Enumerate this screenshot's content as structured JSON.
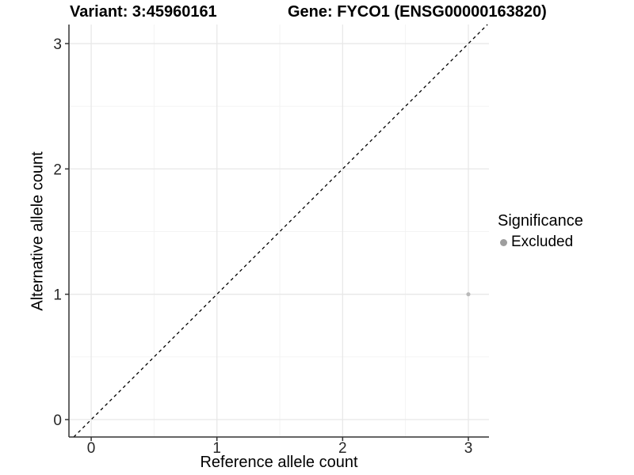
{
  "chart_data": {
    "type": "scatter",
    "title_left": "Variant: 3:45960161",
    "title_right": "Gene: FYCO1 (ENSG00000163820)",
    "xlabel": "Reference allele count",
    "ylabel": "Alternative allele count",
    "xlim": [
      -0.177,
      3.164
    ],
    "ylim": [
      -0.139,
      3.152
    ],
    "x_ticks": [
      0,
      1,
      2,
      3
    ],
    "y_ticks": [
      0,
      1,
      2,
      3
    ],
    "x_minor_ticks": [
      0.5,
      1.5,
      2.5
    ],
    "y_minor_ticks": [
      0.5,
      1.5,
      2.5
    ],
    "grid": "major+minor",
    "identity_line": {
      "style": "dashed",
      "slope": 1,
      "intercept": 0,
      "color": "#000000"
    },
    "series": [
      {
        "name": "Excluded",
        "color": "#b9b9b9",
        "points": [
          {
            "x": 3,
            "y": 1
          }
        ]
      }
    ],
    "legend": {
      "title": "Significance",
      "position": "right",
      "items": [
        {
          "label": "Excluded",
          "marker": "circle",
          "color": "#9e9e9e"
        }
      ]
    },
    "colors": {
      "background": "#ffffff",
      "axis": "#333333",
      "grid_major": "#e8e8e8",
      "grid_minor": "#f2f2f2",
      "title_text": "#000000",
      "tick_text": "#262626"
    }
  }
}
